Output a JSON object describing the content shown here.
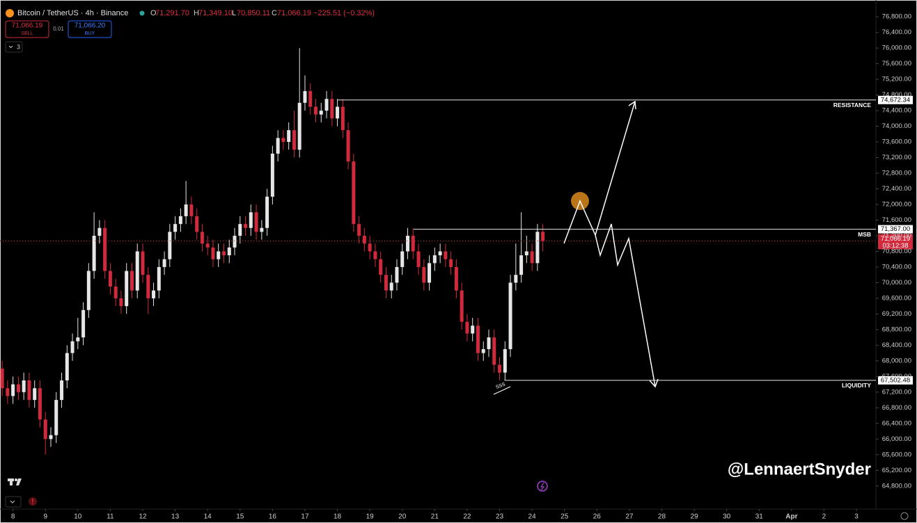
{
  "header": {
    "symbol": "Bitcoin / TetherUS · 4h · Binance",
    "open_label": "O",
    "open": "71,291.70",
    "high_label": "H",
    "high": "71,349.10",
    "low_label": "L",
    "low": "70,850.11",
    "close_label": "C",
    "close": "71,066.19",
    "change": "−225.51 (−0.32%)"
  },
  "trade": {
    "sell_price": "71,066.19",
    "sell": "SELL",
    "spread": "0.01",
    "buy_price": "71,066.20",
    "buy": "BUY"
  },
  "indicators_count": "3",
  "watermark": "@LennaertSnyder",
  "chart_data": {
    "type": "candlestick",
    "up_color": "#e6e6e6",
    "down_color": "#d12a3c",
    "x": [
      7.667,
      7.833,
      8,
      8.167,
      8.333,
      8.5,
      8.667,
      8.833,
      9,
      9.167,
      9.333,
      9.5,
      9.667,
      9.833,
      10,
      10.167,
      10.333,
      10.5,
      10.667,
      10.833,
      11,
      11.167,
      11.333,
      11.5,
      11.667,
      11.833,
      12,
      12.167,
      12.333,
      12.5,
      12.667,
      12.833,
      13,
      13.167,
      13.333,
      13.5,
      13.667,
      13.833,
      14,
      14.167,
      14.333,
      14.5,
      14.667,
      14.833,
      15,
      15.167,
      15.333,
      15.5,
      15.667,
      15.833,
      16,
      16.167,
      16.333,
      16.5,
      16.667,
      16.833,
      17,
      17.167,
      17.333,
      17.5,
      17.667,
      17.833,
      18,
      18.167,
      18.333,
      18.5,
      18.667,
      18.833,
      19,
      19.167,
      19.333,
      19.5,
      19.667,
      19.833,
      20,
      20.167,
      20.333,
      20.5,
      20.667,
      20.833,
      21,
      21.167,
      21.333,
      21.5,
      21.667,
      21.833,
      22,
      22.167,
      22.333,
      22.5,
      22.667,
      22.833,
      23,
      23.167,
      23.333,
      23.5,
      23.667,
      23.833,
      24,
      24.167,
      24.333
    ],
    "open": [
      67800,
      67300,
      67100,
      67400,
      67200,
      67500,
      67000,
      67300,
      66500,
      66000,
      66100,
      67000,
      67500,
      68200,
      68500,
      68600,
      69300,
      70300,
      71200,
      71400,
      70300,
      69900,
      69600,
      69400,
      70300,
      69800,
      70800,
      70200,
      69600,
      69800,
      70400,
      70600,
      71300,
      71500,
      71700,
      72000,
      71700,
      71300,
      71000,
      70900,
      70600,
      70800,
      70700,
      70900,
      71200,
      71500,
      71400,
      71800,
      71300,
      71400,
      72200,
      73300,
      73700,
      73600,
      73900,
      73400,
      74600,
      74900,
      74500,
      74300,
      74400,
      74700,
      74200,
      74500,
      73900,
      73100,
      71500,
      71200,
      71000,
      70800,
      70600,
      70200,
      69800,
      70000,
      70400,
      70800,
      71200,
      70800,
      70400,
      70000,
      70500,
      70700,
      70800,
      70600,
      70400,
      69800,
      69000,
      68700,
      68900,
      68200,
      68300,
      68600,
      67900,
      67700,
      68300,
      70000,
      70200,
      70700,
      70800,
      70500,
      71300
    ],
    "high": [
      68000,
      67500,
      67600,
      67600,
      67700,
      67700,
      67500,
      67500,
      66700,
      66300,
      67200,
      67700,
      68400,
      68700,
      69100,
      69500,
      70500,
      71800,
      71600,
      71600,
      70500,
      70100,
      69800,
      70500,
      70500,
      71000,
      71000,
      70400,
      70000,
      70600,
      70800,
      71500,
      71700,
      71900,
      72600,
      72200,
      71900,
      71500,
      71200,
      71100,
      71000,
      71000,
      71100,
      71400,
      71700,
      71700,
      72000,
      72000,
      71600,
      72400,
      73500,
      73900,
      73900,
      74100,
      74400,
      76000,
      75300,
      75100,
      74700,
      74600,
      74900,
      74900,
      74700,
      74700,
      74100,
      73300,
      71700,
      71400,
      71200,
      71000,
      70800,
      70400,
      70200,
      70600,
      71000,
      71400,
      71400,
      71000,
      70600,
      70700,
      70900,
      71000,
      71000,
      70800,
      70600,
      70000,
      69200,
      69100,
      69100,
      68500,
      68800,
      68800,
      68100,
      68500,
      70200,
      71000,
      71800,
      71200,
      71000,
      71500,
      71500
    ],
    "low": [
      67100,
      66900,
      66900,
      67000,
      67000,
      66800,
      66800,
      66300,
      65600,
      65800,
      65900,
      66800,
      67300,
      68000,
      68300,
      68400,
      69100,
      70100,
      71000,
      70100,
      69700,
      69400,
      69200,
      69200,
      69600,
      69600,
      70000,
      69200,
      69400,
      69600,
      70200,
      70400,
      71100,
      71300,
      71500,
      71500,
      71100,
      70800,
      70700,
      70400,
      70400,
      70500,
      70500,
      70700,
      71000,
      71200,
      71200,
      71100,
      71100,
      71200,
      72000,
      73100,
      73400,
      73400,
      73200,
      73200,
      74400,
      74300,
      74100,
      74100,
      74200,
      74000,
      74000,
      73700,
      72900,
      71300,
      71000,
      70800,
      70600,
      70400,
      70000,
      69600,
      69600,
      69800,
      70200,
      70600,
      70600,
      70200,
      69800,
      69800,
      70300,
      70500,
      70400,
      70200,
      69600,
      68800,
      68500,
      68500,
      68000,
      68000,
      68100,
      67700,
      67500,
      67500,
      68100,
      69800,
      70000,
      70500,
      70300,
      70300,
      70800
    ],
    "close": [
      67300,
      67100,
      67400,
      67200,
      67500,
      67000,
      67300,
      66500,
      66000,
      66100,
      67000,
      67500,
      68200,
      68500,
      68600,
      69300,
      70300,
      71200,
      71400,
      70300,
      69900,
      69600,
      69400,
      70300,
      69800,
      70800,
      70200,
      69600,
      69800,
      70400,
      70600,
      71300,
      71500,
      71700,
      72000,
      71700,
      71300,
      71000,
      70900,
      70600,
      70800,
      70700,
      70900,
      71200,
      71500,
      71400,
      71800,
      71300,
      71400,
      72200,
      73300,
      73700,
      73600,
      73900,
      73400,
      74600,
      74900,
      74500,
      74300,
      74400,
      74700,
      74200,
      74500,
      73900,
      73100,
      71500,
      71200,
      71000,
      70800,
      70600,
      70200,
      69800,
      70000,
      70400,
      70800,
      71200,
      70800,
      70400,
      70000,
      70500,
      70700,
      70800,
      70600,
      70400,
      69800,
      69000,
      68700,
      68900,
      68200,
      68300,
      68600,
      67900,
      67700,
      68300,
      70000,
      70200,
      70700,
      70800,
      70500,
      71300,
      71066.19
    ],
    "xlim": [
      7.6,
      34.6
    ],
    "xticks": [
      8,
      9,
      10,
      11,
      12,
      13,
      14,
      15,
      16,
      17,
      18,
      19,
      20,
      21,
      22,
      23,
      24,
      25,
      26,
      27,
      28,
      29,
      30,
      31,
      {
        "value": 32,
        "label": "Apr"
      },
      {
        "value": 33,
        "label": "2"
      },
      {
        "value": 34,
        "label": "3"
      }
    ],
    "ylim": [
      64600,
      77230
    ],
    "yticks": [
      {
        "value": 64800,
        "label": "64,800.00"
      },
      {
        "value": 65200,
        "label": "65,200.00"
      },
      {
        "value": 65600,
        "label": "65,600.00"
      },
      {
        "value": 66000,
        "label": "66,000.00"
      },
      {
        "value": 66400,
        "label": "66,400.00"
      },
      {
        "value": 66800,
        "label": "66,800.00"
      },
      {
        "value": 67200,
        "label": "67,200.00"
      },
      {
        "value": 67600,
        "label": "67,600.00"
      },
      {
        "value": 68000,
        "label": "68,000.00"
      },
      {
        "value": 68400,
        "label": "68,400.00"
      },
      {
        "value": 68800,
        "label": "68,800.00"
      },
      {
        "value": 69200,
        "label": "69,200.00"
      },
      {
        "value": 69600,
        "label": "69,600.00"
      },
      {
        "value": 70000,
        "label": "70,000.00"
      },
      {
        "value": 70400,
        "label": "70,400.00"
      },
      {
        "value": 70800,
        "label": "70,800.00"
      },
      {
        "value": 71200,
        "label": "71,200.00"
      },
      {
        "value": 71600,
        "label": "71,600.00"
      },
      {
        "value": 72000,
        "label": "72,000.00"
      },
      {
        "value": 72400,
        "label": "72,400.00"
      },
      {
        "value": 72800,
        "label": "72,800.00"
      },
      {
        "value": 73200,
        "label": "73,200.00"
      },
      {
        "value": 73600,
        "label": "73,600.00"
      },
      {
        "value": 74000,
        "label": "74,000.00"
      },
      {
        "value": 74400,
        "label": "74,400.00"
      },
      {
        "value": 74800,
        "label": "74,800.00"
      },
      {
        "value": 75200,
        "label": "75,200.00"
      },
      {
        "value": 75600,
        "label": "75,600.00"
      },
      {
        "value": 76000,
        "label": "76,000.00"
      },
      {
        "value": 76400,
        "label": "76,400.00"
      },
      {
        "value": 76800,
        "label": "76,800.00"
      }
    ],
    "levels": [
      {
        "name": "RESISTANCE",
        "value": 74672.34,
        "label": "74,672.34",
        "from": 18.0
      },
      {
        "name": "MSB",
        "value": 71367,
        "label": "71,367.00",
        "from": 20.35
      },
      {
        "name": "LIQUIDITY",
        "value": 67502.48,
        "label": "67,502.48",
        "from": 23.15
      }
    ],
    "last_price": {
      "value": 71066.19,
      "label": "71,066.19",
      "countdown": "03:12:38"
    },
    "sss_label": "SSS"
  }
}
